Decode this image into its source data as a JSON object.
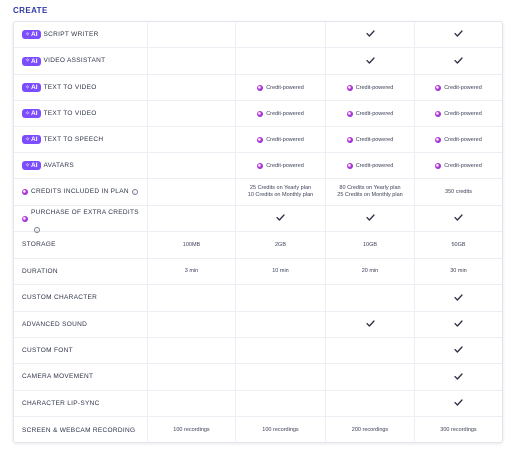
{
  "section": {
    "title": "CREATE"
  },
  "badge": {
    "ai_label": "AI",
    "spark": "✧"
  },
  "icons": {
    "check": "check-icon",
    "credit": "credit-dot-icon",
    "info": "info-icon"
  },
  "colors": {
    "accent": "#2f3aa8",
    "ai_badge": "#7c4dff",
    "credit_dot": "#b33bd8"
  },
  "credit_text": "Credit-powered",
  "rows": [
    {
      "label": "SCRIPT WRITER",
      "ai": true,
      "cells": [
        "",
        "",
        "check",
        "check"
      ]
    },
    {
      "label": "VIDEO ASSISTANT",
      "ai": true,
      "cells": [
        "",
        "",
        "check",
        "check"
      ]
    },
    {
      "label": "TEXT TO VIDEO",
      "ai": true,
      "cells": [
        "",
        "credit",
        "credit",
        "credit"
      ]
    },
    {
      "label": "TEXT TO VIDEO",
      "ai": true,
      "cells": [
        "",
        "credit",
        "credit",
        "credit"
      ]
    },
    {
      "label": "TEXT TO SPEECH",
      "ai": true,
      "cells": [
        "",
        "credit",
        "credit",
        "credit"
      ]
    },
    {
      "label": "AVATARS",
      "ai": true,
      "cells": [
        "",
        "credit",
        "credit",
        "credit"
      ]
    },
    {
      "label": "CREDITS INCLUDED IN PLAN",
      "credit_icon": true,
      "info": true,
      "values": [
        "",
        "25 Credits on Yearly plan\n10 Credits on Monthly plan",
        "80 Credits on Yearly plan\n25 Credits on Monthly plan",
        "350 credits"
      ]
    },
    {
      "label": "PURCHASE OF EXTRA CREDITS",
      "credit_icon": true,
      "info": true,
      "cells": [
        "",
        "check",
        "check",
        "check"
      ]
    },
    {
      "label": "STORAGE",
      "values": [
        "100MB",
        "2GB",
        "10GB",
        "50GB"
      ]
    },
    {
      "label": "DURATION",
      "values": [
        "3 min",
        "10 min",
        "20 min",
        "30 min"
      ]
    },
    {
      "label": "CUSTOM CHARACTER",
      "cells": [
        "",
        "",
        "",
        "check"
      ]
    },
    {
      "label": "ADVANCED SOUND",
      "cells": [
        "",
        "",
        "check",
        "check"
      ]
    },
    {
      "label": "CUSTOM FONT",
      "cells": [
        "",
        "",
        "",
        "check"
      ]
    },
    {
      "label": "CAMERA MOVEMENT",
      "cells": [
        "",
        "",
        "",
        "check"
      ]
    },
    {
      "label": "CHARACTER LIP-SYNC",
      "cells": [
        "",
        "",
        "",
        "check"
      ]
    },
    {
      "label": "SCREEN & WEBCAM RECORDING",
      "values": [
        "100 recordings",
        "100 recordings",
        "200 recordings",
        "300 recordings"
      ]
    }
  ]
}
